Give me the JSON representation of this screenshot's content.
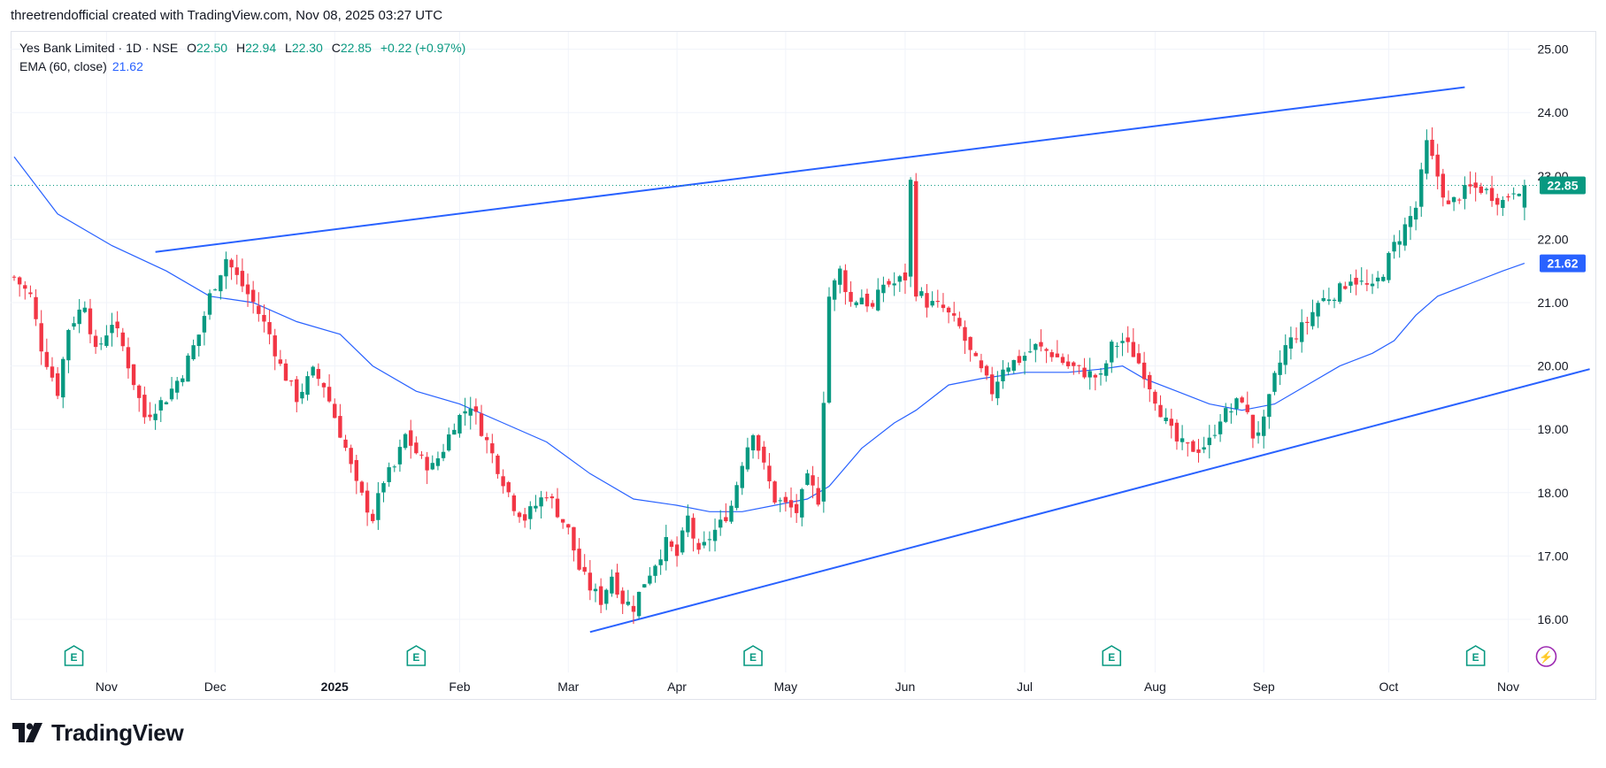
{
  "header": {
    "attribution": "threetrendofficial created with TradingView.com, Nov 08, 2025 03:27 UTC"
  },
  "legend": {
    "symbol": "Yes Bank Limited · 1D · NSE",
    "open_label": "O",
    "open": "22.50",
    "high_label": "H",
    "high": "22.94",
    "low_label": "L",
    "low": "22.30",
    "close_label": "C",
    "close": "22.85",
    "change": "+0.22 (+0.97%)",
    "ema_label": "EMA (60, close)",
    "ema_value": "21.62"
  },
  "brand": {
    "name": "TradingView"
  },
  "colors": {
    "up": "#089981",
    "down": "#f23645",
    "ema": "#2962ff",
    "trendline": "#2962ff",
    "grid": "#f0f3fa",
    "event_earnings": "#089981",
    "event_dividend": "#9c27b0"
  },
  "chart_data": {
    "type": "candlestick",
    "title": "Yes Bank Limited · 1D · NSE",
    "ylim": [
      15.3,
      25.3
    ],
    "y_ticks": [
      "16.00",
      "17.00",
      "18.00",
      "19.00",
      "20.00",
      "21.00",
      "22.00",
      "23.00",
      "24.00",
      "25.00"
    ],
    "x_ticks": [
      {
        "label": "Nov",
        "bar": 17,
        "bold": false
      },
      {
        "label": "Dec",
        "bar": 37,
        "bold": false
      },
      {
        "label": "2025",
        "bar": 59,
        "bold": true
      },
      {
        "label": "Feb",
        "bar": 82,
        "bold": false
      },
      {
        "label": "Mar",
        "bar": 102,
        "bold": false
      },
      {
        "label": "Apr",
        "bar": 122,
        "bold": false
      },
      {
        "label": "May",
        "bar": 142,
        "bold": false
      },
      {
        "label": "Jun",
        "bar": 164,
        "bold": false
      },
      {
        "label": "Jul",
        "bar": 186,
        "bold": false
      },
      {
        "label": "Aug",
        "bar": 210,
        "bold": false
      },
      {
        "label": "Sep",
        "bar": 230,
        "bold": false
      },
      {
        "label": "Oct",
        "bar": 253,
        "bold": false
      },
      {
        "label": "Nov",
        "bar": 275,
        "bold": false
      }
    ],
    "price_labels": [
      {
        "name": "last-price",
        "value": 22.85,
        "text": "22.85",
        "color": "#089981"
      },
      {
        "name": "ema",
        "value": 21.62,
        "text": "21.62",
        "color": "#2962ff"
      }
    ],
    "close_line": 22.85,
    "anchors": [
      [
        0,
        21.4
      ],
      [
        3,
        21.1
      ],
      [
        5,
        20.3
      ],
      [
        8,
        19.6
      ],
      [
        10,
        20.6
      ],
      [
        13,
        21.0
      ],
      [
        15,
        20.2
      ],
      [
        18,
        20.7
      ],
      [
        20,
        20.3
      ],
      [
        24,
        19.2
      ],
      [
        28,
        19.5
      ],
      [
        31,
        19.9
      ],
      [
        34,
        20.5
      ],
      [
        36,
        21.1
      ],
      [
        39,
        21.7
      ],
      [
        41,
        21.4
      ],
      [
        44,
        21.0
      ],
      [
        47,
        20.5
      ],
      [
        49,
        20.0
      ],
      [
        52,
        19.5
      ],
      [
        55,
        19.9
      ],
      [
        57,
        19.7
      ],
      [
        59,
        19.2
      ],
      [
        61,
        18.7
      ],
      [
        63,
        18.1
      ],
      [
        66,
        17.6
      ],
      [
        68,
        18.2
      ],
      [
        70,
        18.4
      ],
      [
        72,
        18.9
      ],
      [
        75,
        18.5
      ],
      [
        77,
        18.4
      ],
      [
        79,
        18.7
      ],
      [
        81,
        19.1
      ],
      [
        84,
        19.4
      ],
      [
        86,
        19.0
      ],
      [
        88,
        18.6
      ],
      [
        90,
        18.2
      ],
      [
        92,
        17.8
      ],
      [
        94,
        17.6
      ],
      [
        96,
        17.8
      ],
      [
        98,
        18.0
      ],
      [
        100,
        17.7
      ],
      [
        102,
        17.4
      ],
      [
        104,
        16.8
      ],
      [
        106,
        16.5
      ],
      [
        108,
        16.3
      ],
      [
        110,
        16.7
      ],
      [
        112,
        16.3
      ],
      [
        114,
        16.2
      ],
      [
        116,
        16.6
      ],
      [
        118,
        16.9
      ],
      [
        120,
        17.2
      ],
      [
        122,
        17.0
      ],
      [
        124,
        17.6
      ],
      [
        126,
        17.0
      ],
      [
        128,
        17.3
      ],
      [
        130,
        17.5
      ],
      [
        132,
        17.8
      ],
      [
        134,
        18.5
      ],
      [
        136,
        19.0
      ],
      [
        138,
        18.4
      ],
      [
        140,
        17.9
      ],
      [
        142,
        17.8
      ],
      [
        144,
        17.7
      ],
      [
        146,
        18.2
      ],
      [
        148,
        17.9
      ],
      [
        150,
        21.1
      ],
      [
        152,
        21.5
      ],
      [
        154,
        21.0
      ],
      [
        156,
        21.1
      ],
      [
        158,
        20.9
      ],
      [
        160,
        21.3
      ],
      [
        162,
        21.3
      ],
      [
        164,
        21.4
      ],
      [
        165,
        22.9
      ],
      [
        166,
        21.2
      ],
      [
        168,
        21.0
      ],
      [
        171,
        20.9
      ],
      [
        174,
        20.6
      ],
      [
        176,
        20.2
      ],
      [
        178,
        19.9
      ],
      [
        180,
        19.6
      ],
      [
        182,
        20.0
      ],
      [
        185,
        20.1
      ],
      [
        188,
        20.3
      ],
      [
        191,
        20.2
      ],
      [
        194,
        20.0
      ],
      [
        197,
        19.9
      ],
      [
        200,
        19.8
      ],
      [
        202,
        20.3
      ],
      [
        204,
        20.4
      ],
      [
        206,
        20.2
      ],
      [
        208,
        19.9
      ],
      [
        210,
        19.5
      ],
      [
        212,
        19.1
      ],
      [
        214,
        18.8
      ],
      [
        216,
        18.7
      ],
      [
        218,
        18.7
      ],
      [
        220,
        18.8
      ],
      [
        222,
        19.2
      ],
      [
        224,
        19.3
      ],
      [
        226,
        19.5
      ],
      [
        228,
        18.9
      ],
      [
        230,
        19.1
      ],
      [
        232,
        19.8
      ],
      [
        234,
        20.3
      ],
      [
        236,
        20.5
      ],
      [
        238,
        20.7
      ],
      [
        240,
        21.0
      ],
      [
        242,
        21.1
      ],
      [
        244,
        21.2
      ],
      [
        246,
        21.4
      ],
      [
        248,
        21.3
      ],
      [
        250,
        21.2
      ],
      [
        252,
        21.5
      ],
      [
        254,
        21.9
      ],
      [
        256,
        22.2
      ],
      [
        258,
        22.5
      ],
      [
        260,
        23.5
      ],
      [
        262,
        23.0
      ],
      [
        264,
        22.5
      ],
      [
        266,
        22.7
      ],
      [
        268,
        22.8
      ],
      [
        270,
        22.8
      ],
      [
        272,
        22.7
      ],
      [
        274,
        22.6
      ],
      [
        276,
        22.8
      ],
      [
        278,
        22.85
      ]
    ],
    "ema_points": [
      [
        0,
        23.3
      ],
      [
        8,
        22.4
      ],
      [
        18,
        21.9
      ],
      [
        28,
        21.5
      ],
      [
        36,
        21.1
      ],
      [
        44,
        21.0
      ],
      [
        52,
        20.7
      ],
      [
        60,
        20.5
      ],
      [
        66,
        20.0
      ],
      [
        74,
        19.6
      ],
      [
        82,
        19.4
      ],
      [
        90,
        19.1
      ],
      [
        98,
        18.8
      ],
      [
        106,
        18.3
      ],
      [
        114,
        17.9
      ],
      [
        122,
        17.8
      ],
      [
        128,
        17.7
      ],
      [
        134,
        17.7
      ],
      [
        140,
        17.8
      ],
      [
        146,
        17.9
      ],
      [
        150,
        18.1
      ],
      [
        156,
        18.7
      ],
      [
        162,
        19.1
      ],
      [
        166,
        19.3
      ],
      [
        172,
        19.7
      ],
      [
        178,
        19.8
      ],
      [
        186,
        19.9
      ],
      [
        194,
        19.9
      ],
      [
        200,
        19.95
      ],
      [
        204,
        20.0
      ],
      [
        208,
        19.8
      ],
      [
        214,
        19.6
      ],
      [
        220,
        19.4
      ],
      [
        226,
        19.3
      ],
      [
        232,
        19.4
      ],
      [
        238,
        19.7
      ],
      [
        244,
        20.0
      ],
      [
        250,
        20.2
      ],
      [
        254,
        20.4
      ],
      [
        258,
        20.8
      ],
      [
        262,
        21.1
      ],
      [
        268,
        21.3
      ],
      [
        274,
        21.5
      ],
      [
        278,
        21.62
      ]
    ],
    "trendlines": [
      {
        "name": "upper-trendline",
        "from": [
          26,
          21.8
        ],
        "to": [
          267,
          24.4
        ]
      },
      {
        "name": "lower-trendline",
        "from": [
          106,
          15.8
        ],
        "to": [
          290,
          19.95
        ]
      }
    ],
    "events": [
      {
        "name": "earnings-event-oct24",
        "bar": 11,
        "label": "E",
        "kind": "earnings"
      },
      {
        "name": "earnings-event-jan25",
        "bar": 74,
        "label": "E",
        "kind": "earnings"
      },
      {
        "name": "earnings-event-apr25",
        "bar": 136,
        "label": "E",
        "kind": "earnings"
      },
      {
        "name": "earnings-event-jul25",
        "bar": 202,
        "label": "E",
        "kind": "earnings"
      },
      {
        "name": "earnings-event-oct25",
        "bar": 269,
        "label": "E",
        "kind": "earnings"
      },
      {
        "name": "dividend-event-nov25",
        "bar": 282,
        "label": "⚡",
        "kind": "dividend"
      }
    ]
  }
}
